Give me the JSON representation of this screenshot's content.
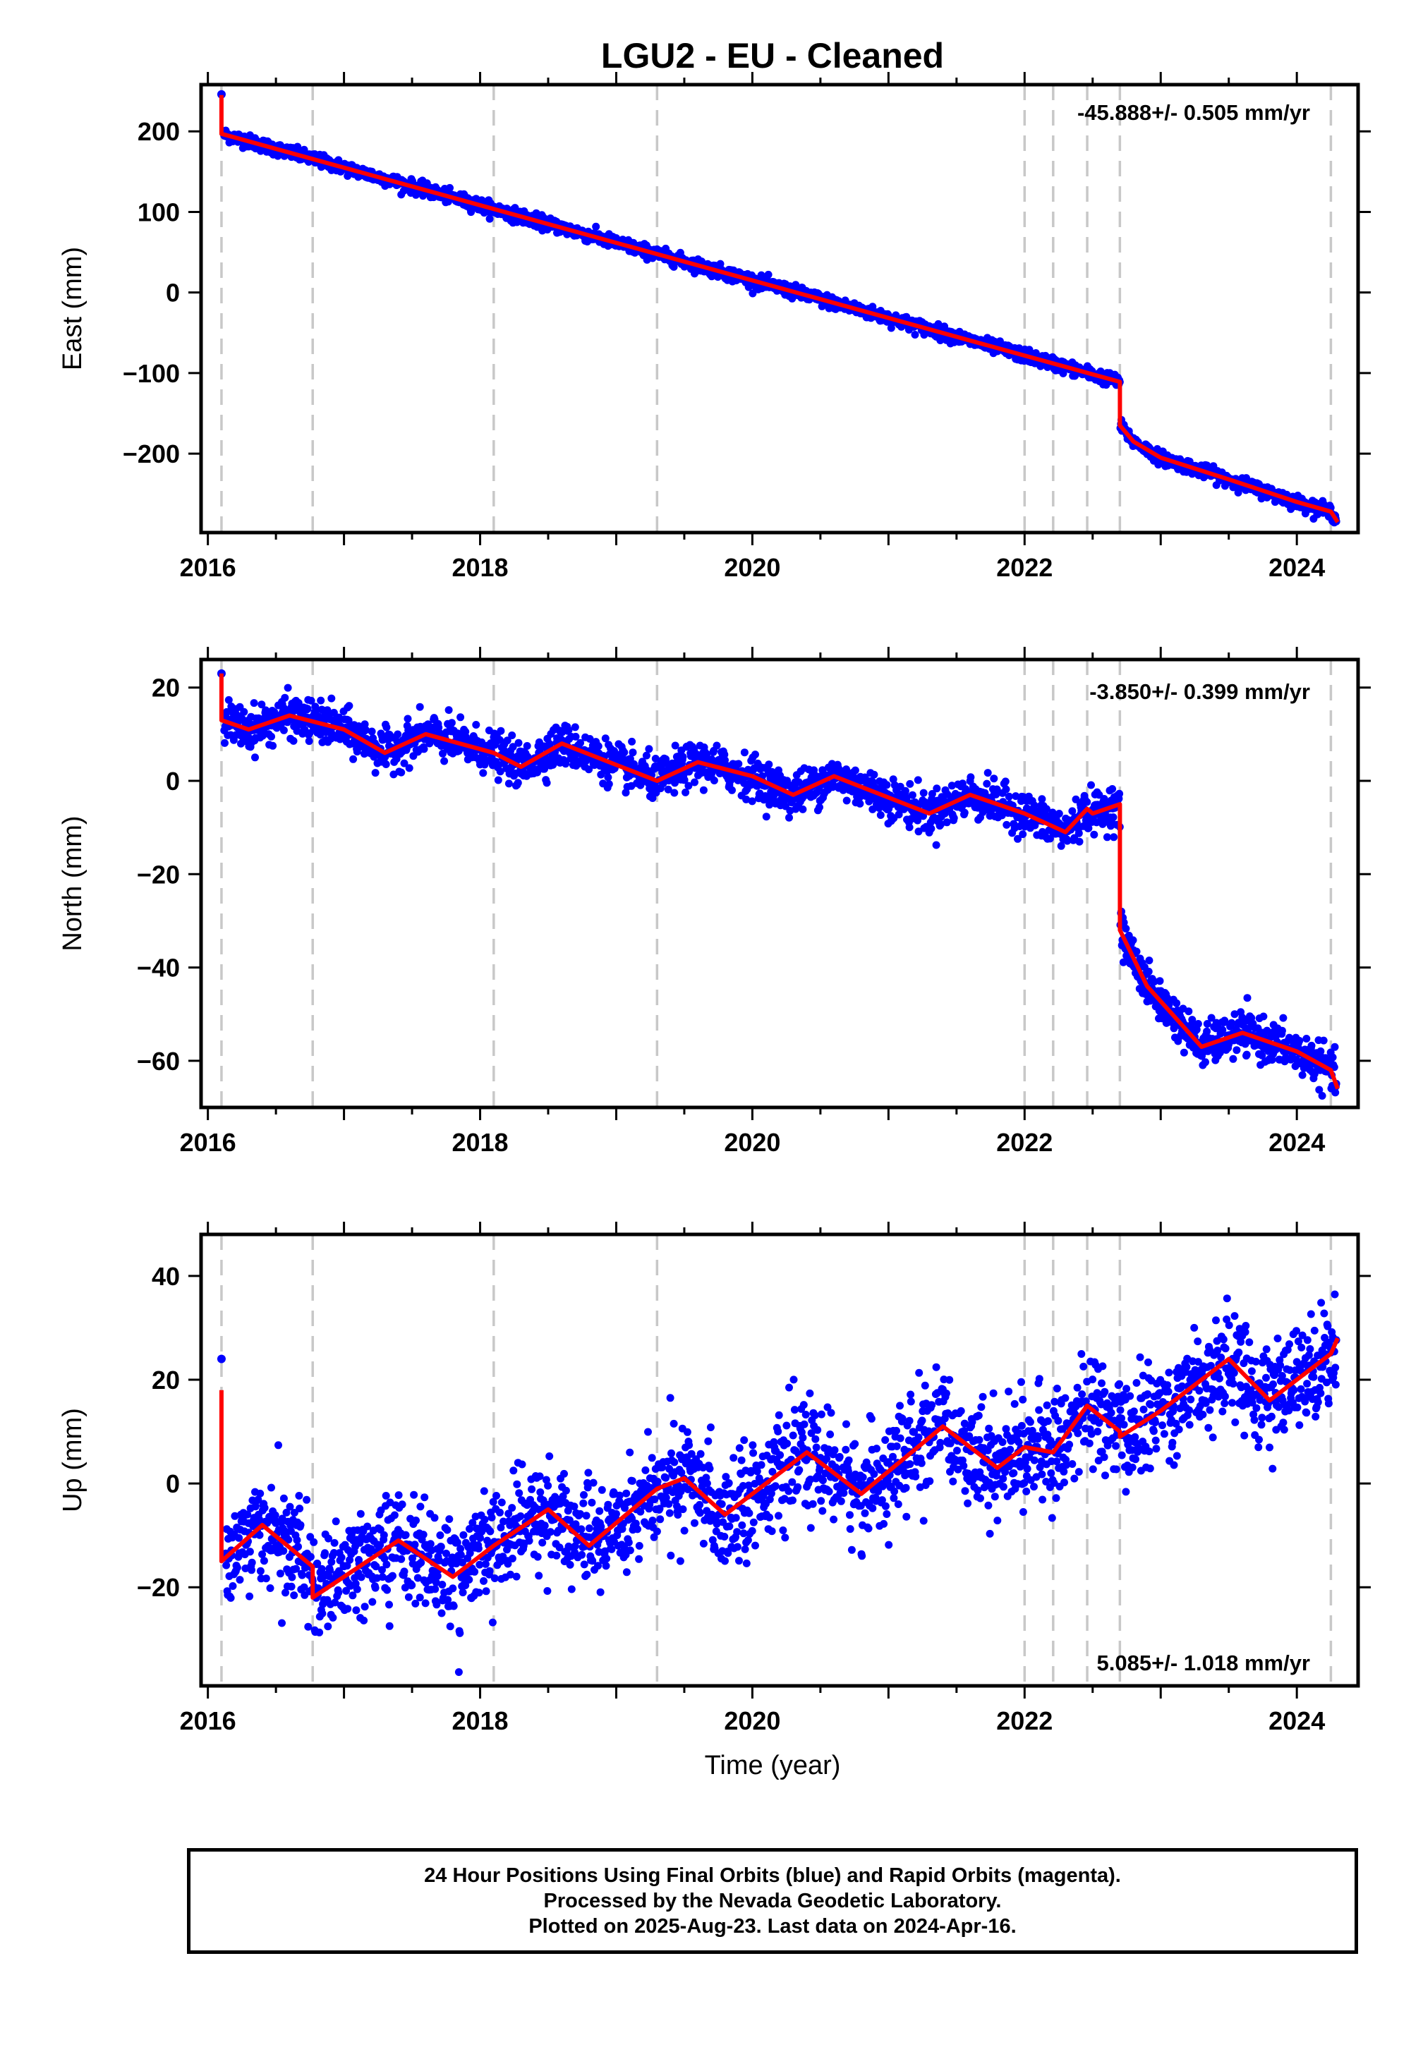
{
  "title": "LGU2  - EU - Cleaned",
  "colors": {
    "points": "#0000ff",
    "model": "#ff0000",
    "vlines": "#c8c8c8",
    "frame": "#000000"
  },
  "x_axis_label": "Time (year)",
  "x_ticks": [
    "2016",
    "2018",
    "2020",
    "2022",
    "2024"
  ],
  "footer": {
    "line1": "24 Hour Positions Using Final Orbits (blue) and Rapid Orbits (magenta).",
    "line2": "Processed by the Nevada Geodetic Laboratory.",
    "line3": "Plotted on 2025-Aug-23. Last data on 2024-Apr-16."
  },
  "chart_data": [
    {
      "type": "scatter",
      "ylabel": "East (mm)",
      "rate_text": "-45.888+/- 0.505 mm/yr",
      "xlim": [
        2015.95,
        2024.45
      ],
      "ylim": [
        -298,
        258
      ],
      "y_ticks": [
        200,
        100,
        0,
        -100,
        -200
      ],
      "event_lines": [
        2016.1,
        2016.77,
        2018.1,
        2019.3,
        2022.0,
        2022.21,
        2022.46,
        2022.7,
        2024.25
      ],
      "rate": -45.888,
      "model_points": [
        [
          2016.1,
          245
        ],
        [
          2016.1,
          197
        ],
        [
          2022.7,
          -111
        ],
        [
          2022.7,
          -165
        ],
        [
          2022.8,
          -185
        ],
        [
          2023.0,
          -205
        ],
        [
          2023.5,
          -232
        ],
        [
          2024.0,
          -260
        ],
        [
          2024.25,
          -272
        ],
        [
          2024.3,
          -285
        ]
      ],
      "noise": 4,
      "first_point": [
        2016.1,
        246
      ]
    },
    {
      "type": "scatter",
      "ylabel": "North (mm)",
      "rate_text": "-3.850+/- 0.399 mm/yr",
      "xlim": [
        2015.95,
        2024.45
      ],
      "ylim": [
        -70,
        26
      ],
      "y_ticks": [
        20,
        0,
        -20,
        -40,
        -60
      ],
      "event_lines": [
        2016.1,
        2016.77,
        2018.1,
        2019.3,
        2022.0,
        2022.21,
        2022.46,
        2022.7,
        2024.25
      ],
      "rate": -3.85,
      "model_points": [
        [
          2016.1,
          23
        ],
        [
          2016.1,
          13
        ],
        [
          2016.3,
          11
        ],
        [
          2016.6,
          14
        ],
        [
          2017.0,
          11
        ],
        [
          2017.3,
          6
        ],
        [
          2017.6,
          10
        ],
        [
          2018.1,
          6
        ],
        [
          2018.3,
          3
        ],
        [
          2018.6,
          8
        ],
        [
          2019.3,
          0
        ],
        [
          2019.6,
          4
        ],
        [
          2020.0,
          1
        ],
        [
          2020.3,
          -3
        ],
        [
          2020.6,
          1
        ],
        [
          2021.3,
          -7
        ],
        [
          2021.6,
          -3
        ],
        [
          2022.0,
          -7
        ],
        [
          2022.3,
          -11
        ],
        [
          2022.46,
          -6
        ],
        [
          2022.5,
          -7
        ],
        [
          2022.7,
          -5
        ],
        [
          2022.7,
          -32
        ],
        [
          2022.9,
          -44
        ],
        [
          2023.3,
          -57
        ],
        [
          2023.6,
          -54
        ],
        [
          2024.0,
          -58
        ],
        [
          2024.25,
          -62
        ],
        [
          2024.3,
          -66
        ]
      ],
      "noise": 2.2,
      "first_point": [
        2016.1,
        23
      ]
    },
    {
      "type": "scatter",
      "ylabel": "Up (mm)",
      "rate_text": "5.085+/- 1.018 mm/yr",
      "xlim": [
        2015.95,
        2024.45
      ],
      "ylim": [
        -39,
        48
      ],
      "y_ticks": [
        40,
        20,
        0,
        -20
      ],
      "event_lines": [
        2016.1,
        2016.77,
        2018.1,
        2019.3,
        2022.0,
        2022.21,
        2022.46,
        2022.7,
        2024.25
      ],
      "rate": 5.085,
      "model_points": [
        [
          2016.1,
          18
        ],
        [
          2016.1,
          -15
        ],
        [
          2016.4,
          -8
        ],
        [
          2016.77,
          -16
        ],
        [
          2016.77,
          -22
        ],
        [
          2017.4,
          -11
        ],
        [
          2017.8,
          -18
        ],
        [
          2018.1,
          -12
        ],
        [
          2018.5,
          -5
        ],
        [
          2018.8,
          -12
        ],
        [
          2019.3,
          -1
        ],
        [
          2019.5,
          1
        ],
        [
          2019.8,
          -6
        ],
        [
          2020.4,
          6
        ],
        [
          2020.8,
          -2
        ],
        [
          2021.4,
          11
        ],
        [
          2021.8,
          3
        ],
        [
          2022.0,
          7
        ],
        [
          2022.21,
          6
        ],
        [
          2022.46,
          15
        ],
        [
          2022.7,
          10
        ],
        [
          2022.7,
          9
        ],
        [
          2023.0,
          14
        ],
        [
          2023.5,
          24
        ],
        [
          2023.8,
          16
        ],
        [
          2024.25,
          25
        ],
        [
          2024.3,
          28
        ]
      ],
      "noise": 5,
      "first_point": [
        2016.1,
        24
      ]
    }
  ]
}
